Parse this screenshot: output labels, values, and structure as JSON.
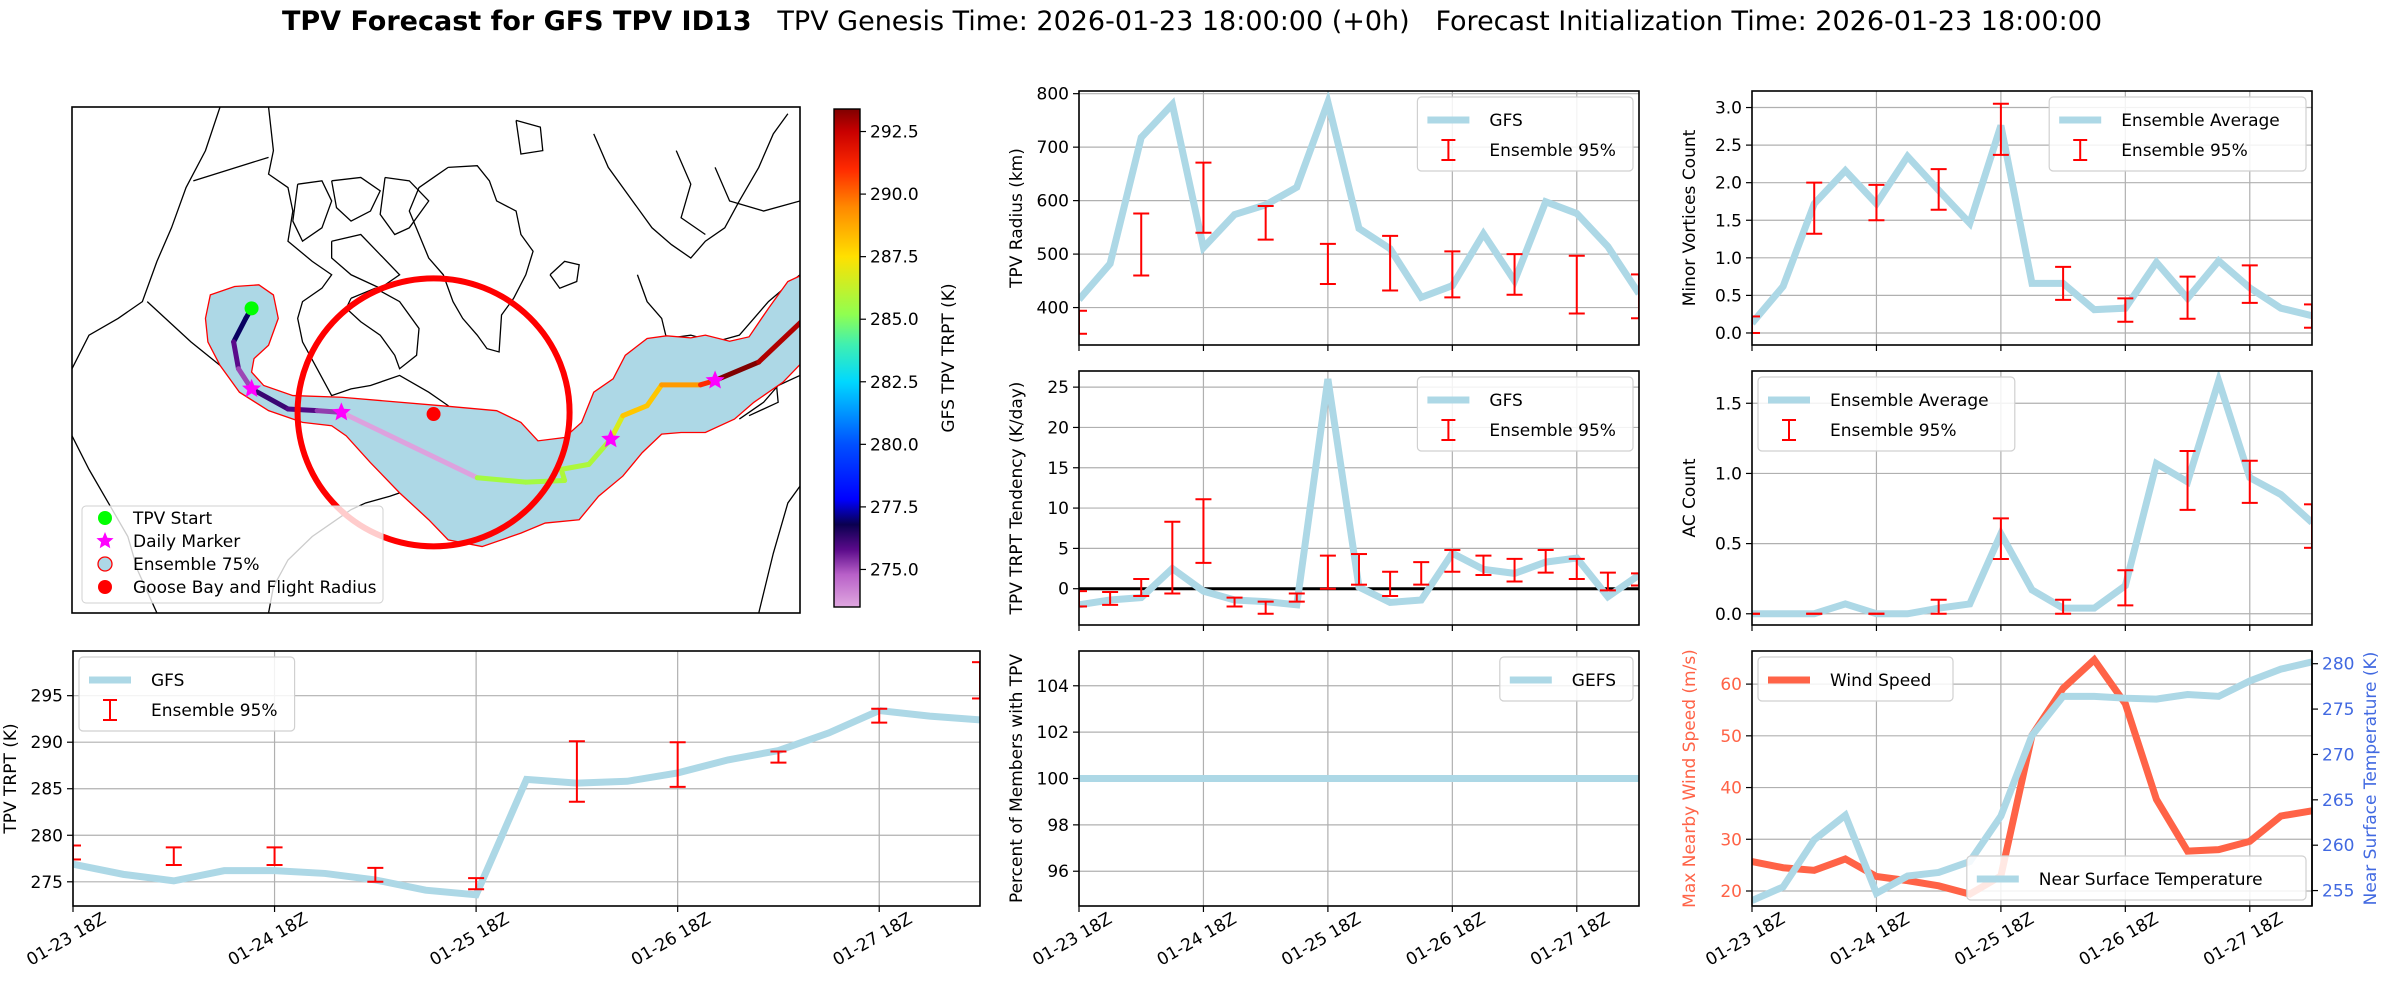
{
  "title": {
    "bold": "TPV Forecast for GFS TPV ID13",
    "genesis": "TPV Genesis Time: 2026-01-23 18:00:00 (+0h)",
    "init": "Forecast Initialization Time: 2026-01-23 18:00:00"
  },
  "time_labels": [
    "01-23 18Z",
    "01-24 18Z",
    "01-25 18Z",
    "01-26 18Z",
    "01-27 18Z"
  ],
  "time_label_index": [
    0,
    4,
    8,
    12,
    16
  ],
  "colors": {
    "line": "#add8e6",
    "error": "#ff0000",
    "wind": "#ff6347",
    "temp_axis": "#4169e1",
    "grid": "#b0b0b0"
  },
  "map": {
    "legend": [
      {
        "label": "TPV Start",
        "marker": "circle",
        "color": "#00ff00"
      },
      {
        "label": "Daily Marker",
        "marker": "star",
        "color": "#ff00ff"
      },
      {
        "label": "Ensemble 75%",
        "marker": "ring",
        "color": "#add8e6",
        "edge": "#ff0000"
      },
      {
        "label": "Goose Bay and Flight Radius",
        "marker": "circle",
        "color": "#ff0000"
      }
    ],
    "ensemble_fill": "#add8e6",
    "ensemble_edge": "#ff0000",
    "radius_color": "#ff0000",
    "colorbar": {
      "label": "GFS TPV TRPT (K)",
      "range": [
        273.5,
        293.4
      ],
      "ticks": [
        "275.0",
        "277.5",
        "280.0",
        "282.5",
        "285.0",
        "287.5",
        "290.0",
        "292.5"
      ],
      "colormap": [
        [
          273.5,
          "#e0a8e0"
        ],
        [
          274.8,
          "#b860c8"
        ],
        [
          275.8,
          "#5a0a8a"
        ],
        [
          276.8,
          "#0a0050"
        ],
        [
          277.8,
          "#0000ff"
        ],
        [
          280.0,
          "#0050ff"
        ],
        [
          282.5,
          "#00d8ff"
        ],
        [
          284.0,
          "#40f0b0"
        ],
        [
          285.2,
          "#90ff50"
        ],
        [
          287.5,
          "#ffe000"
        ],
        [
          289.5,
          "#ff8800"
        ],
        [
          291.0,
          "#ff2a00"
        ],
        [
          292.5,
          "#c80000"
        ],
        [
          293.4,
          "#800000"
        ]
      ]
    }
  },
  "chart_data": [
    {
      "id": "radius",
      "type": "line",
      "ylabel": "TPV Radius (km)",
      "ylim": [
        330,
        805
      ],
      "yticks": [
        "400",
        "500",
        "600",
        "700",
        "800"
      ],
      "x_hours": [
        0,
        6,
        12,
        18,
        24,
        30,
        36,
        42,
        48,
        54,
        60,
        66,
        72,
        78,
        84,
        90,
        96,
        102,
        108
      ],
      "series": [
        {
          "name": "GFS",
          "values": [
            415,
            482,
            718,
            780,
            512,
            574,
            592,
            625,
            784,
            548,
            510,
            419,
            441,
            538,
            450,
            598,
            576,
            514,
            426
          ]
        }
      ],
      "errorbars": {
        "name": "Ensemble 95%",
        "index": [
          0,
          2,
          4,
          6,
          8,
          10,
          12,
          14,
          16,
          18
        ],
        "low": [
          351,
          460,
          540,
          527,
          444,
          432,
          419,
          424,
          389,
          380
        ],
        "high": [
          394,
          576,
          671,
          590,
          519,
          534,
          505,
          500,
          497,
          462
        ]
      },
      "legends": [
        {
          "position": "upper-right",
          "entries": [
            {
              "label": "GFS",
              "kind": "line"
            },
            {
              "label": "Ensemble 95%",
              "kind": "errorbar"
            }
          ]
        }
      ],
      "xlabels": false
    },
    {
      "id": "tendency",
      "type": "line",
      "ylabel": "TPV TRPT Tendency (K/day)",
      "ylim": [
        -4.5,
        27
      ],
      "yticks": [
        "0",
        "5",
        "10",
        "15",
        "20",
        "25"
      ],
      "hline": 0,
      "x_hours": [
        0,
        6,
        12,
        18,
        24,
        30,
        36,
        42,
        48,
        54,
        60,
        66,
        72,
        78,
        84,
        90,
        96,
        102,
        108
      ],
      "series": [
        {
          "name": "GFS",
          "values": [
            -2.0,
            -1.4,
            -1.1,
            2.5,
            -0.3,
            -1.4,
            -1.6,
            -2.0,
            26.0,
            0.2,
            -1.7,
            -1.4,
            4.4,
            2.4,
            1.9,
            3.3,
            3.8,
            -1.0,
            1.7
          ]
        }
      ],
      "errorbars": {
        "name": "Ensemble 95%",
        "index": [
          0,
          1,
          2,
          3,
          4,
          5,
          6,
          7,
          8,
          9,
          10,
          11,
          12,
          13,
          14,
          15,
          16,
          17,
          18
        ],
        "low": [
          -2.2,
          -2.0,
          -0.9,
          -0.6,
          3.2,
          -2.2,
          -3.1,
          -1.6,
          0.0,
          0.5,
          -0.9,
          0.5,
          2.1,
          1.7,
          0.9,
          2.0,
          1.2,
          -0.2,
          0.4
        ],
        "high": [
          -0.3,
          -0.4,
          1.2,
          8.3,
          11.1,
          -1.1,
          -1.6,
          -0.6,
          4.1,
          4.3,
          2.1,
          3.3,
          4.8,
          4.1,
          3.7,
          4.8,
          3.7,
          2.0,
          1.9
        ]
      },
      "legends": [
        {
          "position": "upper-right",
          "entries": [
            {
              "label": "GFS",
              "kind": "line"
            },
            {
              "label": "Ensemble 95%",
              "kind": "errorbar"
            }
          ]
        }
      ],
      "xlabels": false
    },
    {
      "id": "percent",
      "type": "line",
      "ylabel": "Percent of Members with TPV",
      "ylim": [
        94.5,
        105.5
      ],
      "yticks": [
        "96",
        "98",
        "100",
        "102",
        "104"
      ],
      "x_hours": [
        0,
        6,
        12,
        18,
        24,
        30,
        36,
        42,
        48,
        54,
        60,
        66,
        72,
        78,
        84,
        90,
        96,
        102,
        108
      ],
      "series": [
        {
          "name": "GEFS",
          "values": [
            100,
            100,
            100,
            100,
            100,
            100,
            100,
            100,
            100,
            100,
            100,
            100,
            100,
            100,
            100,
            100,
            100,
            100,
            100
          ]
        }
      ],
      "legends": [
        {
          "position": "upper-right",
          "entries": [
            {
              "label": "GEFS",
              "kind": "line"
            }
          ]
        }
      ],
      "xlabels": true
    },
    {
      "id": "minor",
      "type": "line",
      "ylabel": "Minor Vortices Count",
      "ylim": [
        -0.16,
        3.22
      ],
      "yticks": [
        "0.0",
        "0.5",
        "1.0",
        "1.5",
        "2.0",
        "2.5",
        "3.0"
      ],
      "x_hours": [
        0,
        6,
        12,
        18,
        24,
        30,
        36,
        42,
        48,
        54,
        60,
        66,
        72,
        78,
        84,
        90,
        96,
        102,
        108
      ],
      "series": [
        {
          "name": "Ensemble Average",
          "values": [
            0.13,
            0.62,
            1.72,
            2.16,
            1.72,
            2.35,
            1.9,
            1.46,
            2.76,
            0.66,
            0.66,
            0.31,
            0.33,
            0.94,
            0.46,
            0.96,
            0.6,
            0.33,
            0.23
          ]
        }
      ],
      "errorbars": {
        "name": "Ensemble 95%",
        "index": [
          0,
          2,
          4,
          6,
          8,
          10,
          12,
          14,
          16,
          18
        ],
        "low": [
          0,
          1.32,
          1.5,
          1.64,
          2.37,
          0.44,
          0.15,
          0.19,
          0.4,
          0.07
        ],
        "high": [
          0.22,
          2.0,
          1.97,
          2.18,
          3.05,
          0.88,
          0.46,
          0.75,
          0.9,
          0.38
        ]
      },
      "legends": [
        {
          "position": "upper-right",
          "entries": [
            {
              "label": "Ensemble Average",
              "kind": "line"
            },
            {
              "label": "Ensemble 95%",
              "kind": "errorbar"
            }
          ]
        }
      ],
      "xlabels": false
    },
    {
      "id": "ac",
      "type": "line",
      "ylabel": "AC Count",
      "ylim": [
        -0.08,
        1.73
      ],
      "yticks": [
        "0.0",
        "0.5",
        "1.0",
        "1.5"
      ],
      "x_hours": [
        0,
        6,
        12,
        18,
        24,
        30,
        36,
        42,
        48,
        54,
        60,
        66,
        72,
        78,
        84,
        90,
        96,
        102,
        108
      ],
      "series": [
        {
          "name": "Ensemble Average",
          "values": [
            0,
            0,
            0,
            0.07,
            0,
            0,
            0.04,
            0.07,
            0.57,
            0.17,
            0.04,
            0.04,
            0.2,
            1.07,
            0.94,
            1.66,
            0.97,
            0.85,
            0.65
          ]
        }
      ],
      "errorbars": {
        "name": "Ensemble 95%",
        "index": [
          0,
          2,
          4,
          6,
          8,
          10,
          12,
          14,
          16,
          18
        ],
        "low": [
          0,
          0,
          0,
          0,
          0.39,
          0,
          0.06,
          0.74,
          0.79,
          0.47
        ],
        "high": [
          0,
          0,
          0,
          0.1,
          0.68,
          0.1,
          0.31,
          1.16,
          1.09,
          0.78
        ]
      },
      "legends": [
        {
          "position": "upper-left",
          "entries": [
            {
              "label": "Ensemble Average",
              "kind": "line"
            },
            {
              "label": "Ensemble 95%",
              "kind": "errorbar"
            }
          ]
        }
      ],
      "xlabels": false
    },
    {
      "id": "wind",
      "type": "line",
      "ylabel": "Max Nearby Wind Speed (m/s)",
      "ylabel_color": "#ff6347",
      "ylim": [
        17.1,
        66.4
      ],
      "yticks": [
        "20",
        "30",
        "40",
        "50",
        "60"
      ],
      "ylabel2": "Near Surface Temperature (K)",
      "ylabel2_color": "#4169e1",
      "ylim2": [
        253.3,
        281.4
      ],
      "yticks2": [
        "255",
        "260",
        "265",
        "270",
        "275",
        "280"
      ],
      "x_hours": [
        0,
        6,
        12,
        18,
        24,
        30,
        36,
        42,
        48,
        54,
        60,
        66,
        72,
        78,
        84,
        90,
        96,
        102,
        108
      ],
      "series": [
        {
          "name": "Wind Speed",
          "color": "#ff6347",
          "axis": "left",
          "values": [
            25.7,
            24.5,
            24.0,
            26.2,
            22.8,
            22.0,
            21.0,
            19.4,
            22.9,
            50.1,
            59.2,
            64.7,
            56.2,
            37.7,
            27.7,
            28.0,
            29.6,
            34.5,
            35.5
          ]
        },
        {
          "name": "Near Surface Temperature",
          "color": "#add8e6",
          "axis": "right",
          "values": [
            253.9,
            255.4,
            260.6,
            263.3,
            254.7,
            256.6,
            257.0,
            258.2,
            263.2,
            272.1,
            276.4,
            276.4,
            276.2,
            276.1,
            276.6,
            276.4,
            278.1,
            279.4,
            280.2
          ]
        }
      ],
      "legends": [
        {
          "position": "upper-left",
          "entries": [
            {
              "label": "Wind Speed",
              "kind": "line",
              "color": "#ff6347"
            }
          ]
        },
        {
          "position": "lower-right",
          "entries": [
            {
              "label": "Near Surface Temperature",
              "kind": "line"
            }
          ]
        }
      ],
      "xlabels": true
    },
    {
      "id": "trpt",
      "type": "line",
      "ylabel": "TPV TRPT (K)",
      "ylim": [
        272.4,
        299.8
      ],
      "yticks": [
        "275",
        "280",
        "285",
        "290",
        "295"
      ],
      "x_hours": [
        0,
        6,
        12,
        18,
        24,
        30,
        36,
        42,
        48,
        54,
        60,
        66,
        72,
        78,
        84,
        90,
        96,
        102,
        108
      ],
      "series": [
        {
          "name": "GFS",
          "values": [
            276.9,
            275.8,
            275.1,
            276.2,
            276.2,
            275.9,
            275.2,
            274.1,
            273.6,
            286.0,
            285.6,
            285.8,
            286.7,
            288.1,
            289.1,
            291.0,
            293.4,
            292.8,
            292.4
          ]
        }
      ],
      "errorbars": {
        "name": "Ensemble 95%",
        "index": [
          0,
          2,
          4,
          6,
          8,
          10,
          12,
          14,
          16,
          18
        ],
        "low": [
          277.4,
          276.8,
          276.8,
          275.0,
          274.2,
          283.6,
          285.2,
          287.8,
          292.1,
          294.7
        ],
        "high": [
          278.9,
          278.7,
          278.7,
          276.5,
          275.4,
          290.1,
          290.0,
          289.0,
          293.6,
          298.6
        ]
      },
      "legends": [
        {
          "position": "upper-left",
          "entries": [
            {
              "label": "GFS",
              "kind": "line"
            },
            {
              "label": "Ensemble 95%",
              "kind": "errorbar"
            }
          ]
        }
      ],
      "xlabels": true
    }
  ]
}
